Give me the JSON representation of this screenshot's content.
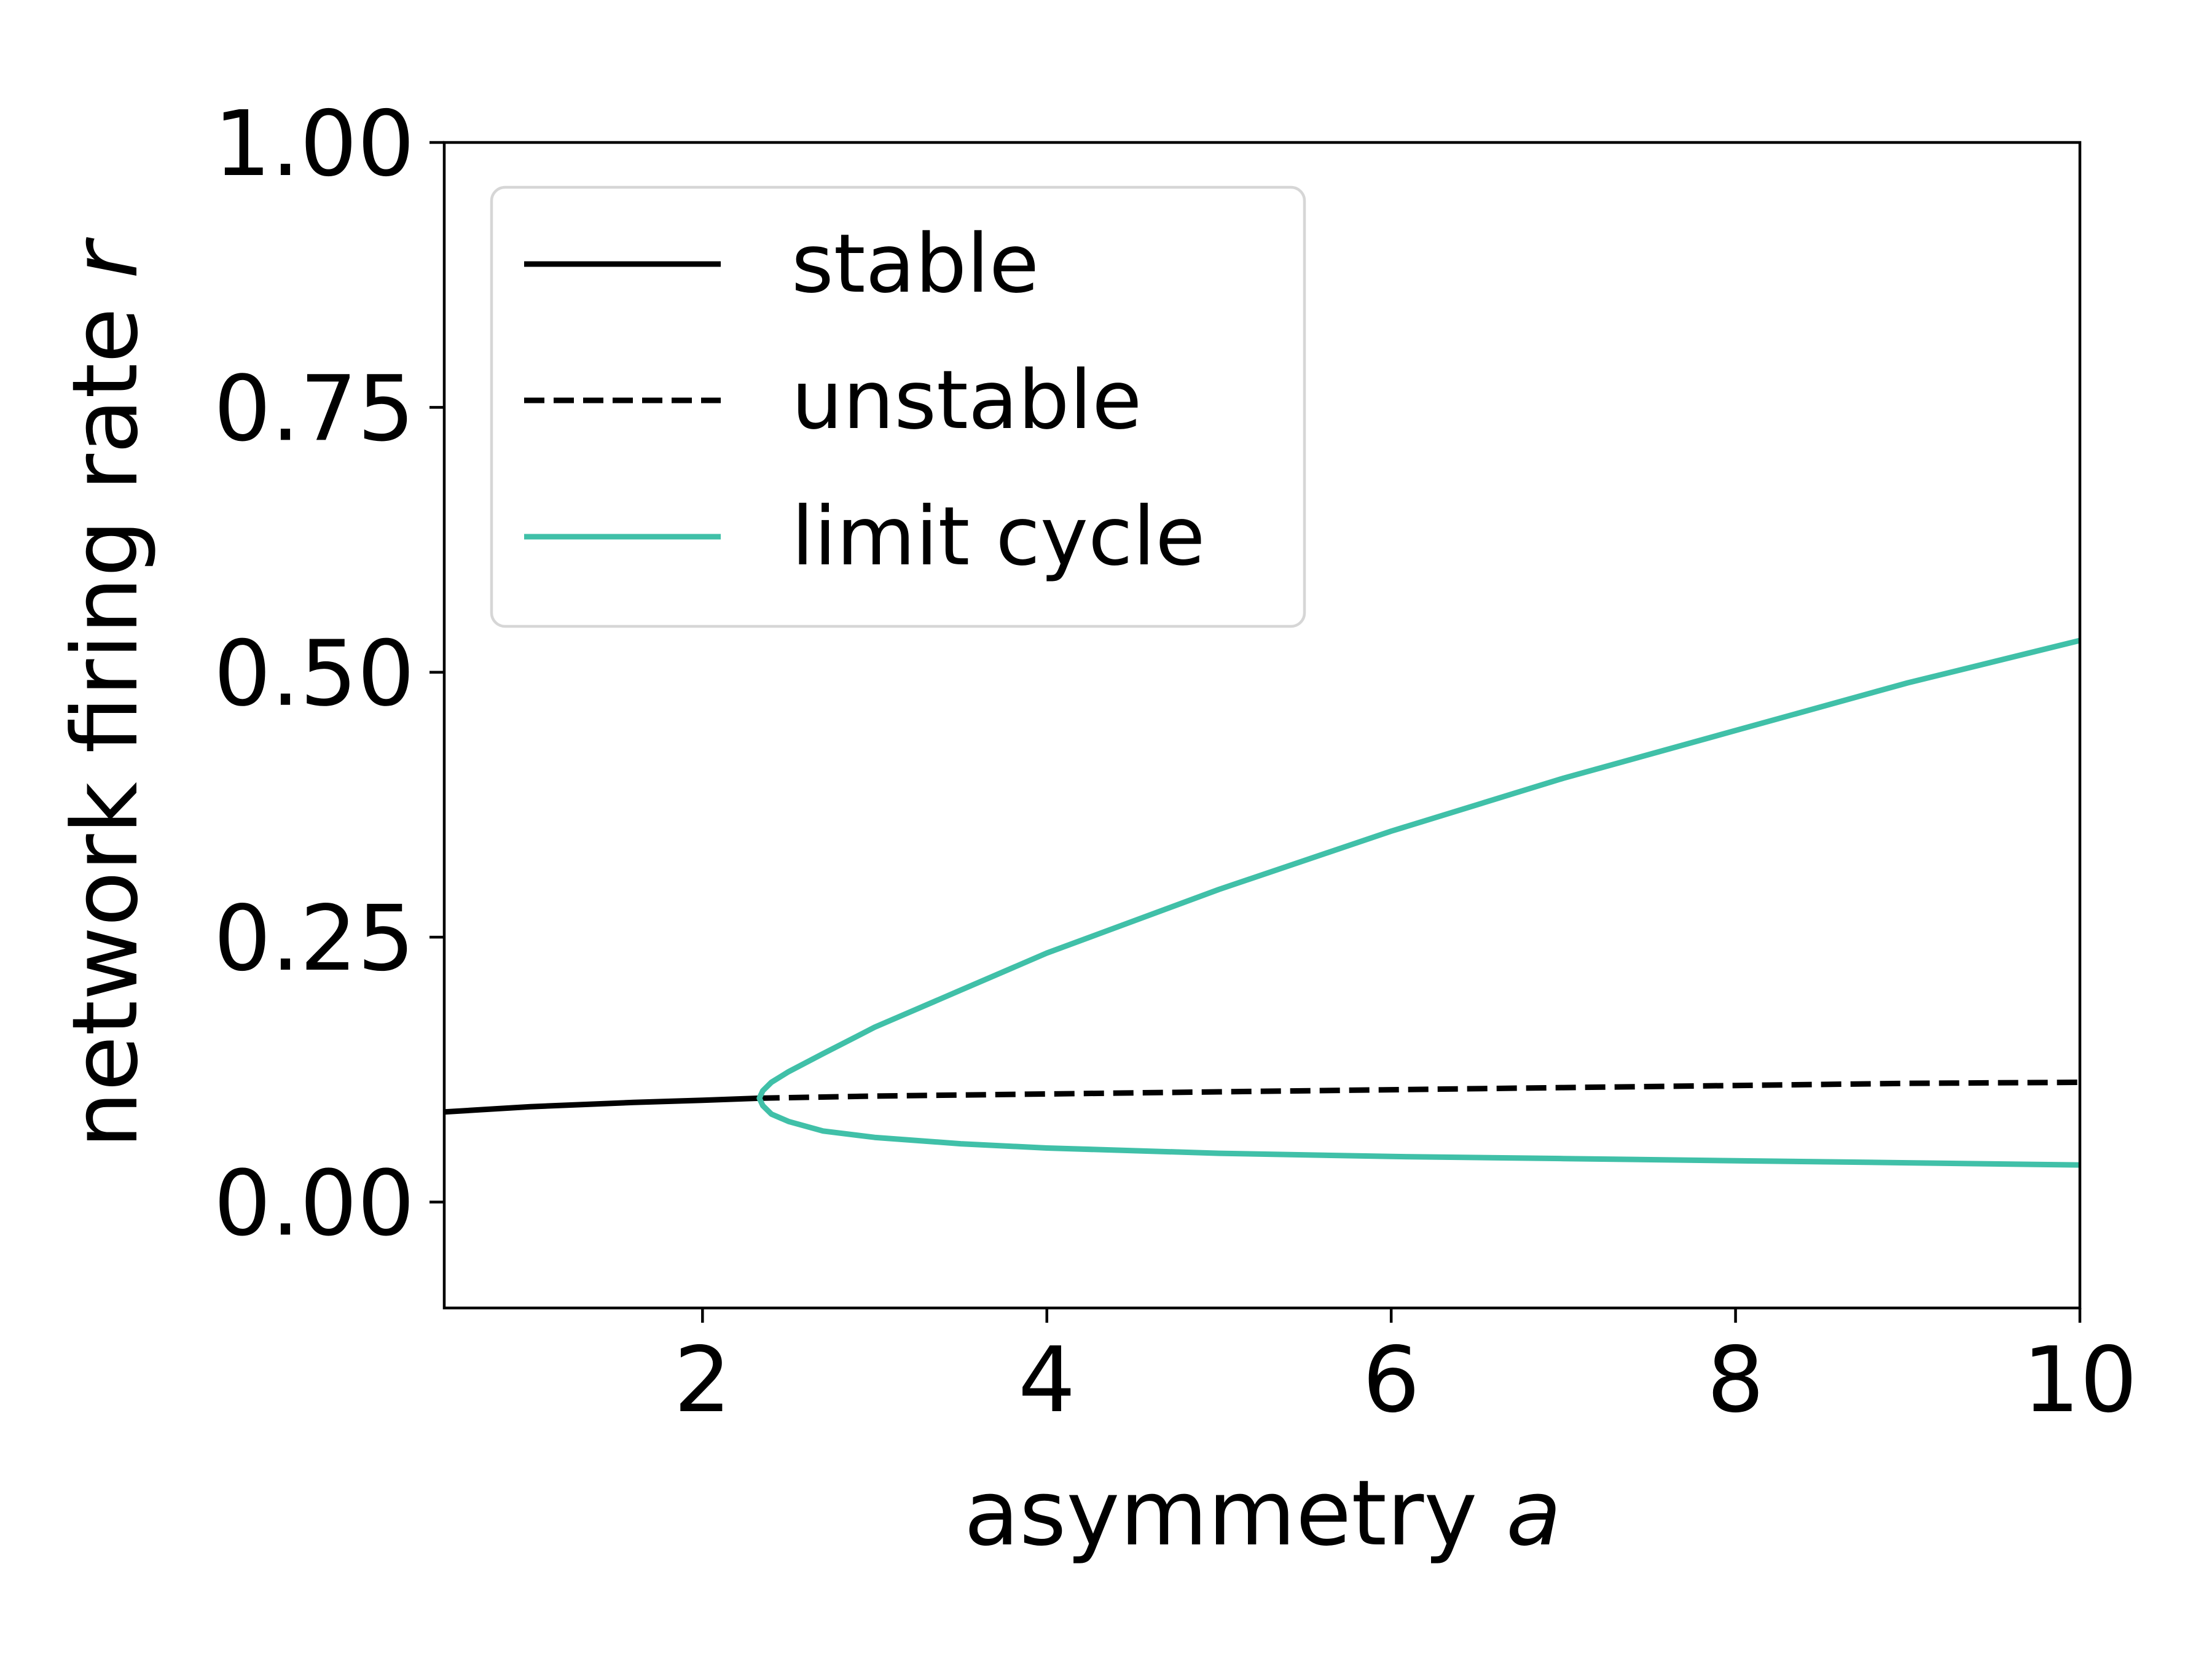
{
  "chart_data": {
    "type": "line",
    "xlabel": "asymmetry",
    "xlabel_symbol": "a",
    "ylabel": "network firing rate",
    "ylabel_symbol": "r",
    "xlim": [
      0.5,
      10
    ],
    "ylim": [
      -0.1,
      1.0
    ],
    "xticks": [
      2,
      4,
      6,
      8,
      10
    ],
    "yticks": [
      0.0,
      0.25,
      0.5,
      0.75,
      1.0
    ],
    "xtick_labels": [
      "2",
      "4",
      "6",
      "8",
      "10"
    ],
    "ytick_labels": [
      "0.00",
      "0.25",
      "0.50",
      "0.75",
      "1.00"
    ],
    "grid": false,
    "legend_position": "top-left",
    "series": [
      {
        "name": "stable",
        "color": "#000000",
        "style": "solid",
        "x": [
          0.5,
          0.8,
          1.0,
          1.3,
          1.6,
          2.0,
          2.33
        ],
        "y": [
          0.085,
          0.088,
          0.09,
          0.092,
          0.094,
          0.096,
          0.098
        ]
      },
      {
        "name": "unstable",
        "color": "#000000",
        "style": "dashed",
        "x": [
          2.33,
          3.0,
          4.0,
          5.0,
          6.0,
          7.0,
          8.0,
          9.0,
          10.0
        ],
        "y": [
          0.098,
          0.1,
          0.102,
          0.104,
          0.106,
          0.108,
          0.11,
          0.112,
          0.113
        ]
      },
      {
        "name": "limit cycle",
        "color": "#40c0a8",
        "style": "solid",
        "x": [
          10.0,
          9.0,
          8.0,
          7.0,
          6.0,
          5.0,
          4.0,
          3.5,
          3.0,
          2.7,
          2.5,
          2.4,
          2.35,
          2.33,
          2.35,
          2.4,
          2.5,
          2.7,
          3.0,
          3.5,
          4.0,
          5.0,
          6.0,
          7.0,
          8.0,
          9.0,
          10.0
        ],
        "y": [
          0.53,
          0.49,
          0.445,
          0.4,
          0.35,
          0.295,
          0.235,
          0.2,
          0.165,
          0.14,
          0.123,
          0.113,
          0.105,
          0.098,
          0.091,
          0.083,
          0.076,
          0.067,
          0.061,
          0.055,
          0.051,
          0.046,
          0.043,
          0.041,
          0.039,
          0.037,
          0.035
        ]
      }
    ]
  }
}
